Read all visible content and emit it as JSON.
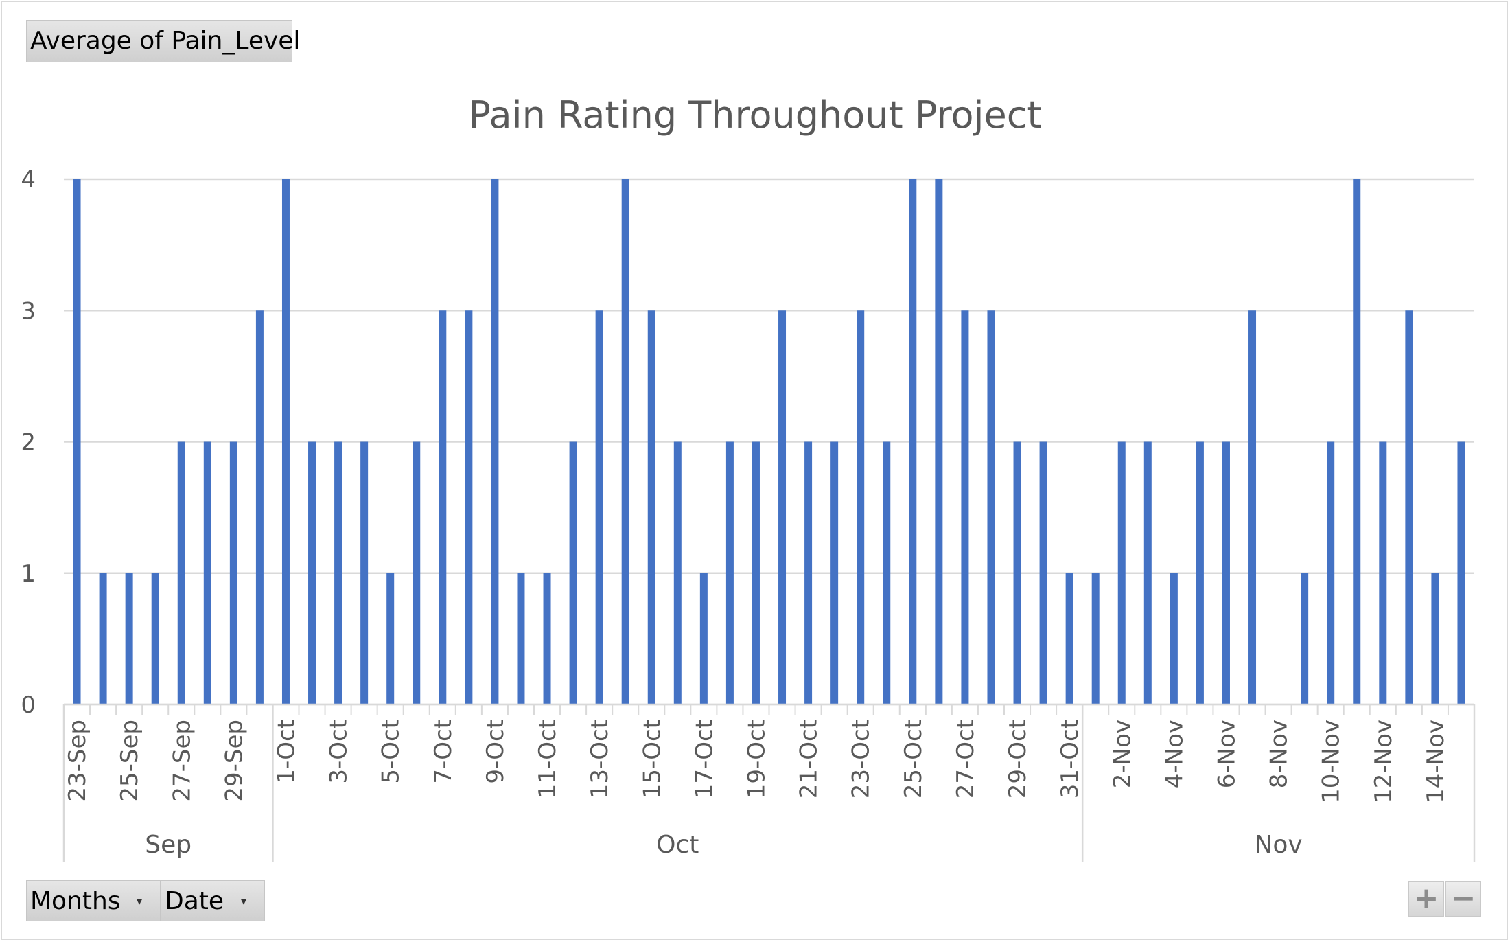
{
  "pivot": {
    "value_field": "Average  of Pain_Level",
    "row_field_months": "Months",
    "row_field_date": "Date",
    "dropdown_glyph": "▾",
    "zoom_in": "+",
    "zoom_out": "−"
  },
  "chart_data": {
    "type": "bar",
    "title": "Pain Rating Throughout Project",
    "xlabel": "",
    "ylabel": "",
    "ylim": [
      0,
      4
    ],
    "yticks": [
      0,
      1,
      2,
      3,
      4
    ],
    "grid": true,
    "bar_color": "#4472c4",
    "categories": [
      "23-Sep",
      "24-Sep",
      "25-Sep",
      "26-Sep",
      "27-Sep",
      "28-Sep",
      "29-Sep",
      "30-Sep",
      "1-Oct",
      "2-Oct",
      "3-Oct",
      "4-Oct",
      "5-Oct",
      "6-Oct",
      "7-Oct",
      "8-Oct",
      "9-Oct",
      "10-Oct",
      "11-Oct",
      "12-Oct",
      "13-Oct",
      "14-Oct",
      "15-Oct",
      "16-Oct",
      "17-Oct",
      "18-Oct",
      "19-Oct",
      "20-Oct",
      "21-Oct",
      "22-Oct",
      "23-Oct",
      "24-Oct",
      "25-Oct",
      "26-Oct",
      "27-Oct",
      "28-Oct",
      "29-Oct",
      "30-Oct",
      "31-Oct",
      "1-Nov",
      "2-Nov",
      "3-Nov",
      "4-Nov",
      "5-Nov",
      "6-Nov",
      "7-Nov",
      "8-Nov",
      "9-Nov",
      "10-Nov",
      "11-Nov",
      "12-Nov",
      "13-Nov",
      "14-Nov",
      "15-Nov"
    ],
    "tick_labels": [
      "23-Sep",
      "25-Sep",
      "27-Sep",
      "29-Sep",
      "1-Oct",
      "3-Oct",
      "5-Oct",
      "7-Oct",
      "9-Oct",
      "11-Oct",
      "13-Oct",
      "15-Oct",
      "17-Oct",
      "19-Oct",
      "21-Oct",
      "23-Oct",
      "25-Oct",
      "27-Oct",
      "29-Oct",
      "31-Oct",
      "2-Nov",
      "4-Nov",
      "6-Nov",
      "8-Nov",
      "10-Nov",
      "12-Nov",
      "14-Nov"
    ],
    "values": [
      4,
      1,
      1,
      1,
      2,
      2,
      2,
      3,
      4,
      2,
      2,
      2,
      1,
      2,
      3,
      3,
      4,
      1,
      1,
      2,
      3,
      4,
      3,
      2,
      1,
      2,
      2,
      3,
      2,
      2,
      3,
      2,
      4,
      4,
      3,
      3,
      2,
      2,
      1,
      1,
      2,
      2,
      1,
      2,
      2,
      3,
      0,
      1,
      2,
      4,
      2,
      3,
      1,
      2
    ],
    "groups": [
      {
        "label": "Sep",
        "start": "23-Sep",
        "end": "30-Sep"
      },
      {
        "label": "Oct",
        "start": "1-Oct",
        "end": "31-Oct"
      },
      {
        "label": "Nov",
        "start": "1-Nov",
        "end": "15-Nov"
      }
    ]
  }
}
